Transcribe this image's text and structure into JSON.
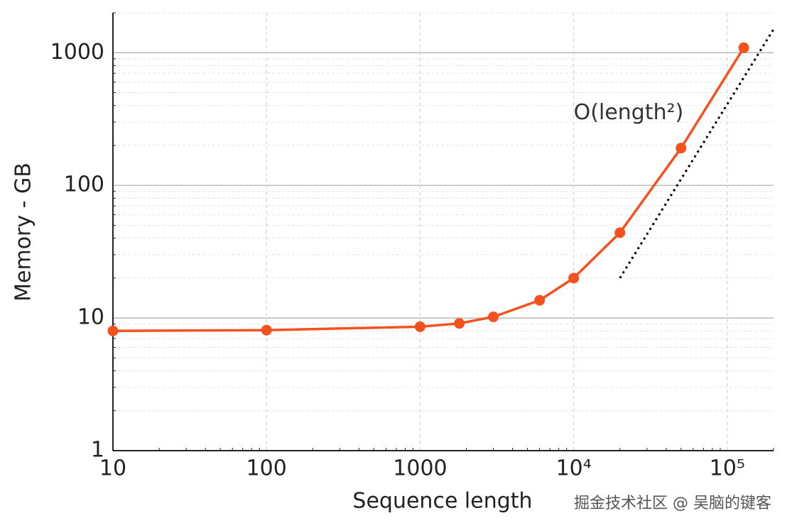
{
  "chart_data": {
    "type": "line",
    "x_label": "Sequence length",
    "y_label": "Memory - GB",
    "x": [
      10,
      100,
      1000,
      1800,
      3000,
      6000,
      10000,
      20000,
      50000,
      128000
    ],
    "series": [
      {
        "name": "Memory",
        "color": "#f4511e",
        "values": [
          8,
          8.1,
          8.6,
          9.1,
          10.2,
          13.6,
          20,
          44,
          191,
          1090
        ]
      }
    ],
    "trend": {
      "x": [
        20000,
        200000
      ],
      "values": [
        20,
        1500
      ],
      "color": "#000000"
    },
    "annotation": {
      "text": "O(length²)",
      "x": 10000,
      "y": 350
    },
    "xscale": "log",
    "yscale": "log",
    "xlim": [
      10,
      200000
    ],
    "ylim": [
      1,
      2000
    ],
    "xticks": [
      10,
      100,
      1000,
      {
        "value": 10000,
        "label": "10⁴"
      },
      {
        "value": 100000,
        "label": "10⁵"
      }
    ],
    "yticks": [
      1,
      10,
      100,
      1000
    ],
    "grid": true,
    "watermark": "掘金技术社区 @ 吴脑的键客"
  }
}
